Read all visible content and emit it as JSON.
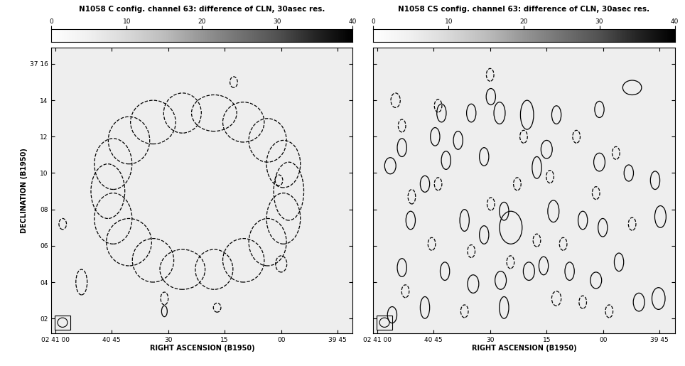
{
  "chart_data": [
    {
      "type": "contour",
      "title": "N1058 C config. channel 63: difference of CLN, 30asec res.",
      "x_label": "RIGHT ASCENSION (B1950)",
      "y_label": "DECLINATION (B1950)",
      "xlim": [
        61,
        -19
      ],
      "xticks": [
        {
          "value": 60,
          "label": "02 41 00"
        },
        {
          "value": 45,
          "label": "40 45"
        },
        30,
        15,
        {
          "value": 0,
          "label": "00"
        },
        {
          "value": -15,
          "label": "39 45"
        }
      ],
      "ylim": [
        1.2,
        16.9
      ],
      "yticks": [
        {
          "value": 16,
          "label": "37 16"
        },
        14,
        12,
        10,
        {
          "value": 8,
          "label": "08"
        },
        {
          "value": 6,
          "label": "06"
        },
        {
          "value": 4,
          "label": "04"
        },
        {
          "value": 2,
          "label": "02"
        }
      ],
      "colorbar": {
        "range": [
          0,
          40
        ],
        "ticks": [
          0,
          10,
          20,
          30,
          40
        ]
      },
      "series": [
        {
          "line_style": "dashed",
          "color": "#000000",
          "x": [
            -2.0,
            -0.6,
            3.6,
            10.0,
            17.8,
            26.2,
            34.0,
            40.4,
            44.6,
            46.0,
            44.6,
            40.4,
            34.0,
            26.2,
            17.8,
            10.0,
            3.6,
            -0.6,
            53.0,
            58.0,
            31.0,
            0.0,
            12.6,
            0.6,
            17.0
          ],
          "y": [
            9.0,
            10.5,
            11.8,
            12.8,
            13.3,
            13.3,
            12.8,
            11.8,
            10.5,
            9.0,
            7.5,
            6.2,
            5.2,
            4.7,
            4.7,
            5.2,
            6.2,
            7.5,
            4.0,
            7.2,
            3.1,
            5.0,
            15.0,
            9.6,
            2.6
          ],
          "width": [
            8,
            9,
            10,
            11,
            12,
            10,
            12,
            11,
            10,
            9,
            10,
            12,
            11,
            12,
            10,
            11,
            10,
            9,
            3,
            2,
            2,
            3,
            2,
            2,
            2
          ],
          "height": [
            3.2,
            2.6,
            2.4,
            2.2,
            2.0,
            2.2,
            2.4,
            2.6,
            2.8,
            3.0,
            2.8,
            2.6,
            2.4,
            2.2,
            2.2,
            2.4,
            2.6,
            2.8,
            1.4,
            0.6,
            0.7,
            0.9,
            0.6,
            0.6,
            0.5
          ]
        },
        {
          "line_style": "solid",
          "color": "#000000",
          "x": [
            31.0
          ],
          "y": [
            2.4
          ],
          "width": [
            1.5
          ],
          "height": [
            0.6
          ]
        }
      ]
    },
    {
      "type": "contour",
      "title": "N1058 CS config. channel 63: difference of CLN, 30asec res.",
      "x_label": "RIGHT ASCENSION (B1950)",
      "xlim": [
        61,
        -19
      ],
      "xticks": [
        {
          "value": 60,
          "label": "02 41 00"
        },
        {
          "value": 45,
          "label": "40 45"
        },
        30,
        15,
        {
          "value": 0,
          "label": "00"
        },
        {
          "value": -15,
          "label": "39 45"
        }
      ],
      "ylim": [
        1.2,
        16.9
      ],
      "yticks": [
        16,
        14,
        12,
        10,
        8,
        6,
        4,
        2
      ],
      "tick_labels": "x",
      "colorbar": {
        "range": [
          0,
          40
        ],
        "ticks": [
          0,
          10,
          20,
          30,
          40
        ]
      },
      "series": [
        {
          "line_style": "solid",
          "color": "#000000",
          "x": [
            56.5,
            53.4,
            42.9,
            35.0,
            29.8,
            27.5,
            20.2,
            12.4,
            1.0,
            -7.7,
            44.6,
            38.5,
            15.0,
            17.6,
            41.7,
            31.6,
            1.0,
            -6.8,
            -13.8,
            36.8,
            26.3,
            13.2,
            5.4,
            0.1,
            -15.2,
            24.5,
            51.1,
            53.4,
            47.3,
            42.0,
            34.5,
            26.3,
            27.2,
            19.7,
            15.8,
            8.9,
            1.9,
            -4.2,
            -9.5,
            -14.7,
            31.6,
            47.3,
            56.0
          ],
          "y": [
            10.4,
            11.4,
            13.3,
            13.3,
            14.2,
            13.3,
            13.2,
            13.2,
            13.5,
            14.7,
            12.0,
            11.8,
            11.3,
            10.3,
            10.7,
            10.9,
            10.6,
            10.0,
            9.6,
            7.4,
            7.9,
            7.9,
            7.4,
            7.0,
            7.6,
            7.0,
            7.4,
            4.8,
            2.6,
            4.6,
            3.9,
            2.6,
            4.1,
            4.6,
            4.9,
            4.6,
            4.1,
            5.1,
            2.9,
            3.1,
            6.6,
            9.4,
            2.2
          ],
          "width": [
            3,
            2.5,
            2.5,
            2.5,
            2.5,
            3,
            3.5,
            2.5,
            2.5,
            5,
            2.5,
            2.5,
            3,
            2.5,
            2.5,
            2.5,
            3,
            2.5,
            2.5,
            2.5,
            2.5,
            3,
            2.5,
            2.5,
            3,
            6,
            2.5,
            2.5,
            2.5,
            2.5,
            3,
            2.5,
            3,
            3,
            2.5,
            2.5,
            3,
            2.5,
            3,
            3.5,
            2.5,
            2.5,
            2.5
          ],
          "height": [
            0.9,
            1.0,
            1.0,
            1.0,
            0.9,
            1.2,
            1.6,
            1.0,
            0.9,
            0.8,
            1.0,
            1.0,
            1.0,
            1.2,
            1.0,
            1.0,
            1.0,
            0.9,
            1.0,
            1.2,
            1.0,
            1.2,
            1.0,
            1.0,
            1.2,
            1.8,
            1.0,
            1.0,
            1.2,
            1.0,
            1.0,
            1.2,
            1.0,
            1.0,
            1.0,
            1.0,
            0.9,
            1.0,
            1.0,
            1.2,
            1.0,
            0.9,
            0.9
          ]
        },
        {
          "line_style": "dashed",
          "color": "#000000",
          "x": [
            55.1,
            53.4,
            43.8,
            21.1,
            14.1,
            7.1,
            -3.4,
            50.8,
            43.8,
            29.8,
            17.6,
            10.6,
            -7.7,
            45.5,
            35.0,
            24.6,
            12.4,
            5.4,
            -1.6,
            36.8,
            52.5,
            22.8,
            1.9,
            30.0
          ],
          "y": [
            14.0,
            12.6,
            13.7,
            12.0,
            9.8,
            12.0,
            11.1,
            8.7,
            9.4,
            8.3,
            6.3,
            6.1,
            7.2,
            6.1,
            5.7,
            5.1,
            3.1,
            2.9,
            2.4,
            2.4,
            3.5,
            9.4,
            8.9,
            15.4
          ],
          "width": [
            2.5,
            2,
            2,
            2,
            2,
            2,
            2,
            2,
            2,
            2,
            2,
            2,
            2,
            2,
            2,
            2,
            2.5,
            2,
            2,
            2,
            2,
            2,
            2,
            2
          ],
          "height": [
            0.8,
            0.7,
            0.7,
            0.7,
            0.7,
            0.7,
            0.7,
            0.8,
            0.7,
            0.7,
            0.7,
            0.7,
            0.7,
            0.7,
            0.7,
            0.7,
            0.8,
            0.7,
            0.7,
            0.7,
            0.7,
            0.7,
            0.7,
            0.7
          ]
        }
      ]
    }
  ]
}
